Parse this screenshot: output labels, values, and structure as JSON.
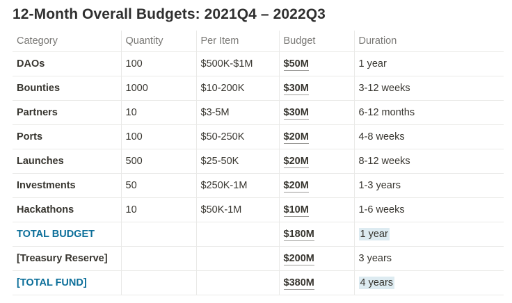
{
  "title": "12-Month Overall Budgets: 2021Q4 – 2022Q3",
  "headers": [
    "Category",
    "Quantity",
    "Per Item",
    "Budget",
    "Duration"
  ],
  "rows": [
    {
      "category": "DAOs",
      "quantity": "100",
      "per_item": "$500K-$1M",
      "budget": "$50M",
      "duration": "1 year"
    },
    {
      "category": "Bounties",
      "quantity": "1000",
      "per_item": "$10-200K",
      "budget": "$30M",
      "duration": "3-12 weeks"
    },
    {
      "category": "Partners",
      "quantity": "10",
      "per_item": "$3-5M",
      "budget": "$30M",
      "duration": "6-12 months"
    },
    {
      "category": "Ports",
      "quantity": "100",
      "per_item": "$50-250K",
      "budget": "$20M",
      "duration": "4-8 weeks"
    },
    {
      "category": "Launches",
      "quantity": "500",
      "per_item": "$25-50K",
      "budget": "$20M",
      "duration": "8-12 weeks"
    },
    {
      "category": "Investments",
      "quantity": "50",
      "per_item": "$250K-1M",
      "budget": "$20M",
      "duration": "1-3 years"
    },
    {
      "category": "Hackathons",
      "quantity": "10",
      "per_item": "$50K-1M",
      "budget": "$10M",
      "duration": "1-6 weeks"
    },
    {
      "category": "TOTAL BUDGET",
      "quantity": "",
      "per_item": "",
      "budget": "$180M",
      "duration": "1 year"
    },
    {
      "category": "[Treasury Reserve]",
      "quantity": "",
      "per_item": "",
      "budget": "$200M",
      "duration": "3 years"
    },
    {
      "category": "[TOTAL FUND]",
      "quantity": "",
      "per_item": "",
      "budget": "$380M",
      "duration": "4 years"
    }
  ]
}
